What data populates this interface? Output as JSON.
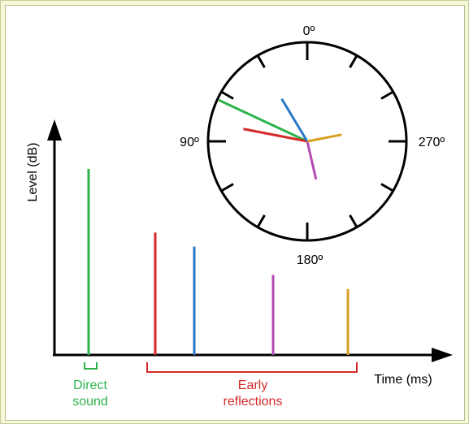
{
  "chart_data": {
    "type": "bar",
    "ylabel": "Level (dB)",
    "xlabel": "Time (ms)",
    "groups": [
      {
        "name": "Direct sound",
        "label_lines": [
          "Direct",
          "sound"
        ],
        "color": "#2db34a"
      },
      {
        "name": "Early reflections",
        "label_lines": [
          "Early",
          "reflections"
        ],
        "color": "#d42a2a"
      }
    ],
    "impulses": [
      {
        "color": "#2db34a",
        "relative_level": 0.79,
        "angle_deg": 65
      },
      {
        "color": "#d42a2a",
        "relative_level": 0.52,
        "angle_deg": 79
      },
      {
        "color": "#2a78c8",
        "relative_level": 0.46,
        "angle_deg": 31
      },
      {
        "color": "#b44ab4",
        "relative_level": 0.34,
        "angle_deg": 193
      },
      {
        "color": "#d8a020",
        "relative_level": 0.28,
        "angle_deg": 281
      }
    ],
    "dial": {
      "labels": [
        "0º",
        "90º",
        "180º",
        "270º"
      ]
    }
  }
}
